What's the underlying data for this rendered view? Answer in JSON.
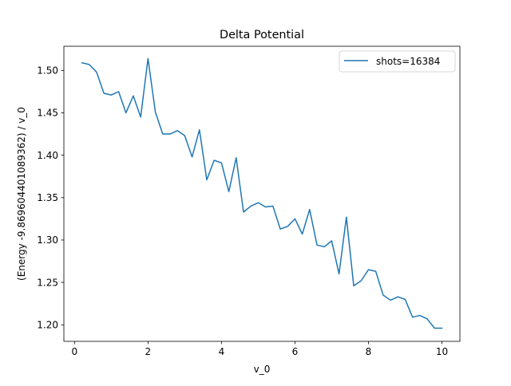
{
  "chart_data": {
    "type": "line",
    "title": "Delta Potential",
    "xlabel": "v_0",
    "ylabel": "(Energy -9.869604401089362) / v_0",
    "xlim": [
      -0.29,
      10.49
    ],
    "ylim": [
      1.1805,
      1.5285
    ],
    "xticks": [
      0,
      2,
      4,
      6,
      8,
      10
    ],
    "yticks": [
      1.2,
      1.25,
      1.3,
      1.35,
      1.4,
      1.45,
      1.5
    ],
    "xtick_labels": [
      "0",
      "2",
      "4",
      "6",
      "8",
      "10"
    ],
    "ytick_labels": [
      "1.20",
      "1.25",
      "1.30",
      "1.35",
      "1.40",
      "1.45",
      "1.50"
    ],
    "grid": false,
    "legend_position": "top-right",
    "series": [
      {
        "name": "shots=16384",
        "color": "#1f77b4",
        "x": [
          0.2,
          0.4,
          0.6,
          0.8,
          1.0,
          1.2,
          1.4,
          1.6,
          1.8,
          2.0,
          2.2,
          2.4,
          2.6,
          2.8,
          3.0,
          3.2,
          3.4,
          3.6,
          3.8,
          4.0,
          4.2,
          4.4,
          4.6,
          4.8,
          5.0,
          5.2,
          5.4,
          5.6,
          5.8,
          6.0,
          6.2,
          6.4,
          6.6,
          6.8,
          7.0,
          7.2,
          7.4,
          7.6,
          7.8,
          8.0,
          8.2,
          8.4,
          8.6,
          8.8,
          9.0,
          9.2,
          9.4,
          9.6,
          9.8,
          10.0
        ],
        "values": [
          1.509,
          1.507,
          1.498,
          1.473,
          1.471,
          1.475,
          1.45,
          1.47,
          1.445,
          1.514,
          1.451,
          1.425,
          1.425,
          1.429,
          1.423,
          1.398,
          1.43,
          1.371,
          1.394,
          1.391,
          1.357,
          1.397,
          1.333,
          1.34,
          1.344,
          1.339,
          1.34,
          1.313,
          1.316,
          1.325,
          1.307,
          1.336,
          1.294,
          1.292,
          1.299,
          1.26,
          1.327,
          1.246,
          1.252,
          1.265,
          1.263,
          1.235,
          1.229,
          1.233,
          1.23,
          1.209,
          1.211,
          1.207,
          1.196,
          1.196
        ]
      }
    ]
  }
}
